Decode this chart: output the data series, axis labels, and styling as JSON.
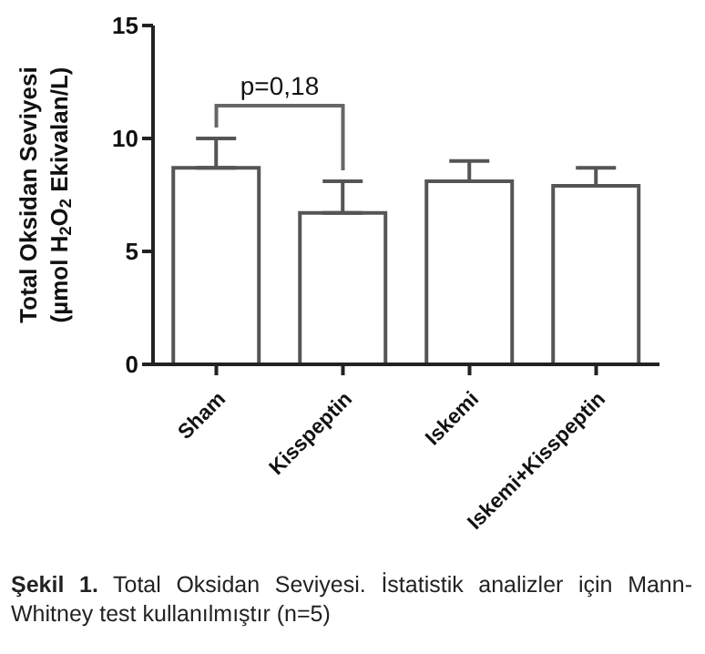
{
  "chart_data": {
    "type": "bar",
    "ylabel": "Total Oksidan Seviyesi\n(µmol H$_{2}$O$_{2}$ Ekivalan/L)",
    "categories": [
      "Sham",
      "Kisspeptin",
      "Iskemi",
      "Iskemi+Kisspeptin"
    ],
    "values": [
      8.7,
      6.7,
      8.1,
      7.9
    ],
    "errors": [
      [
        8.7,
        10.0
      ],
      [
        6.7,
        8.1
      ],
      [
        8.1,
        9.0
      ],
      [
        7.9,
        8.7
      ]
    ],
    "color": "#ffffff",
    "ylim": [
      0,
      15
    ],
    "yticks": [
      0,
      5,
      10,
      15
    ],
    "grid": false,
    "annotations": [
      "p=0,18",
      "Şekil 1. Total Oksidan Seviyesi. İstatistik analizler için Mann-Whitney test kullanılmıştır (n=5)"
    ]
  }
}
